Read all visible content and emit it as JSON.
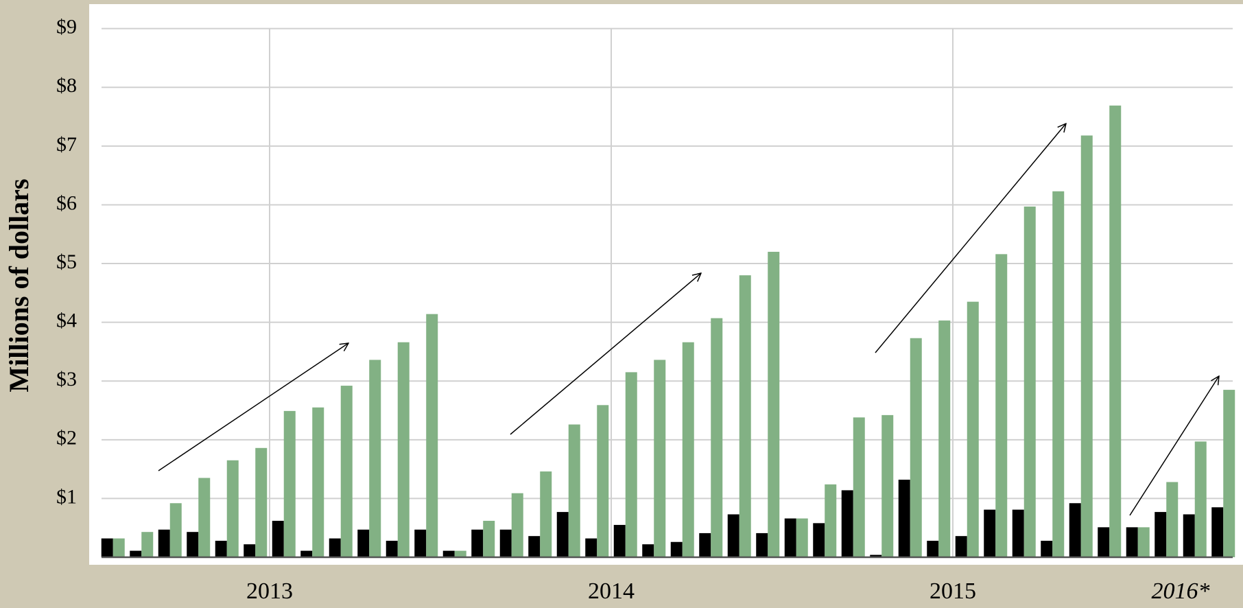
{
  "chart_data": {
    "type": "bar",
    "y_label": "Millions of dollars",
    "categories": [
      "2013",
      null,
      null,
      null,
      null,
      null,
      null,
      null,
      null,
      null,
      null,
      null,
      "2014",
      null,
      null,
      null,
      null,
      null,
      null,
      null,
      null,
      null,
      null,
      null,
      "2015",
      null,
      null,
      null,
      null,
      null,
      null,
      null,
      null,
      null,
      null,
      null,
      "2016*",
      null,
      null,
      null
    ],
    "series": [
      {
        "color": "#000000",
        "values": [
          0.32,
          0.11,
          0.47,
          0.43,
          0.28,
          0.22,
          0.62,
          0.11,
          0.32,
          0.47,
          0.28,
          0.47,
          0.11,
          0.47,
          0.47,
          0.36,
          0.77,
          0.32,
          0.55,
          0.22,
          0.26,
          0.41,
          0.73,
          0.41,
          0.66,
          0.58,
          1.14,
          0.04,
          1.32,
          0.28,
          0.36,
          0.81,
          0.81,
          0.28,
          0.92,
          0.51,
          0.51,
          0.77,
          0.73,
          0.85
        ]
      },
      {
        "color": "#82b184",
        "values": [
          0.32,
          0.43,
          0.92,
          1.35,
          1.65,
          1.86,
          2.49,
          2.55,
          2.92,
          3.36,
          3.66,
          4.14,
          0.11,
          0.62,
          1.09,
          1.46,
          2.26,
          2.59,
          3.15,
          3.36,
          3.66,
          4.07,
          4.8,
          5.2,
          0.66,
          1.24,
          2.38,
          2.42,
          3.73,
          4.03,
          4.35,
          5.16,
          5.97,
          6.23,
          7.18,
          7.69,
          0.51,
          1.28,
          1.97,
          2.85
        ]
      }
    ],
    "ylim": [
      0,
      9.3
    ],
    "yticks": [
      {
        "value": 1,
        "label": "$1"
      },
      {
        "value": 2,
        "label": "$2"
      },
      {
        "value": 3,
        "label": "$3"
      },
      {
        "value": 4,
        "label": "$4"
      },
      {
        "value": 5,
        "label": "$5"
      },
      {
        "value": 6,
        "label": "$6"
      },
      {
        "value": 7,
        "label": "$7"
      },
      {
        "value": 8,
        "label": "$8"
      },
      {
        "value": 9,
        "label": "$9"
      }
    ],
    "grid": true
  }
}
